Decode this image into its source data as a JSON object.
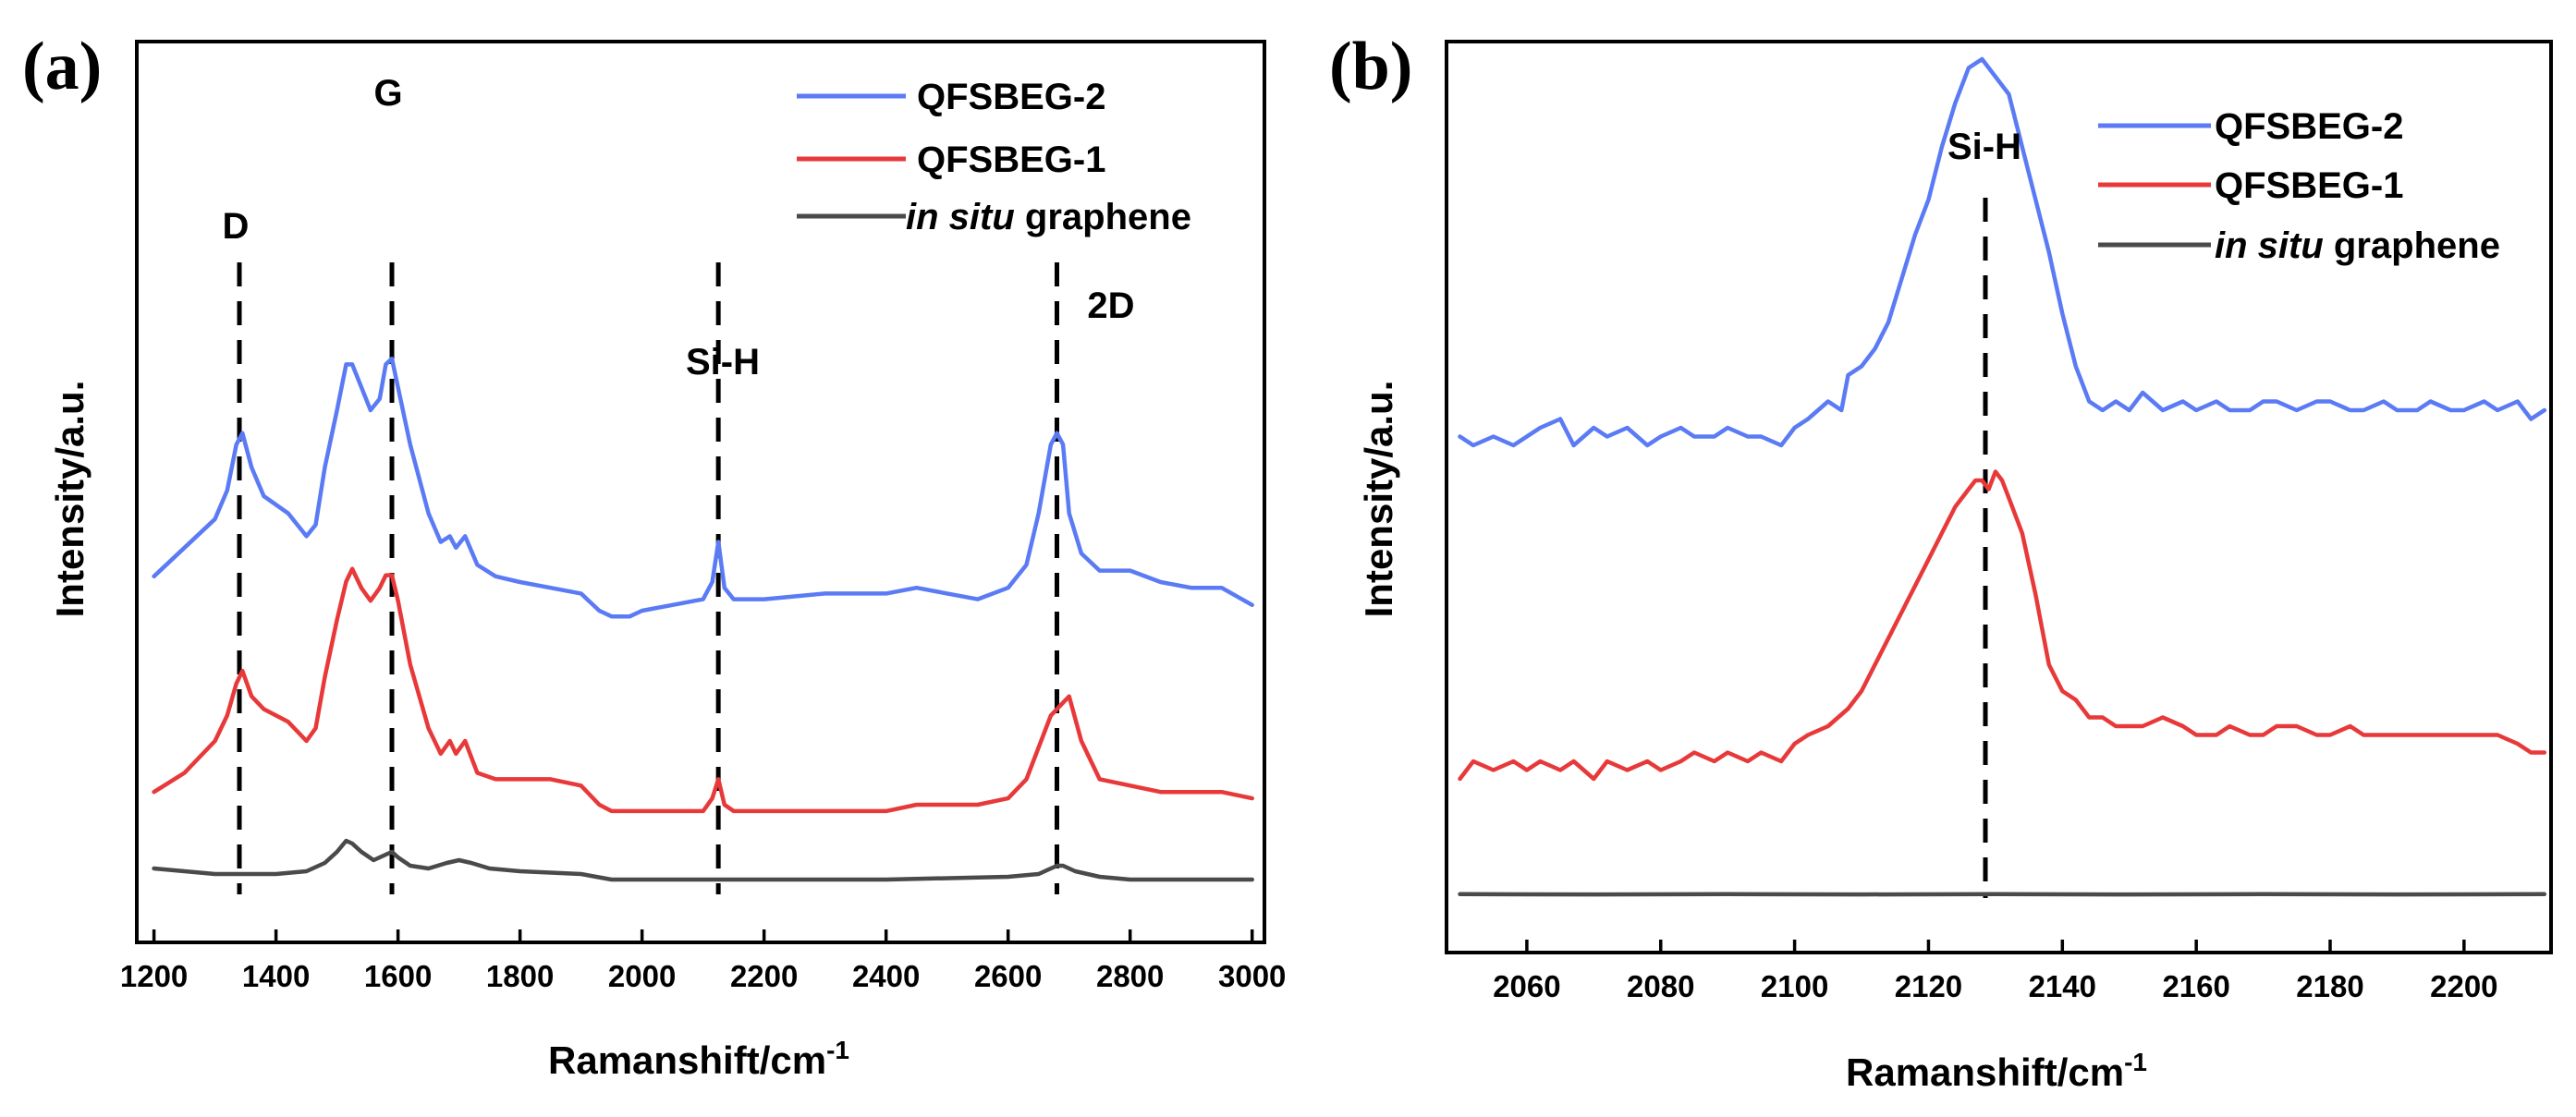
{
  "colors": {
    "qfsbeg2": "#5B7BF5",
    "qfsbeg1": "#E8393A",
    "graphene": "#4A4A4A"
  },
  "chart_data": [
    {
      "type": "line",
      "panel_label": "(a)",
      "xlabel": "Ramanshift/cm",
      "xlabel_sup": "-1",
      "ylabel": "Intensity/a.u.",
      "xlim": [
        1190,
        3005
      ],
      "ylim": [
        0,
        100
      ],
      "x_ticks": [
        "1200",
        "1400",
        "1600",
        "1800",
        "2000",
        "2200",
        "2400",
        "2600",
        "2800",
        "3000"
      ],
      "y_ticks": [],
      "legend": [
        {
          "name": "QFSBEG-2",
          "italic_prefix": ""
        },
        {
          "name": "QFSBEG-1",
          "italic_prefix": ""
        },
        {
          "name": " graphene",
          "italic_prefix": "in situ"
        }
      ],
      "annotations": [
        {
          "label": "D",
          "x": 1340
        },
        {
          "label": "G",
          "x": 1590
        },
        {
          "label": "Si-H",
          "x": 2125
        },
        {
          "label": "2D",
          "x": 2680
        }
      ],
      "series": [
        {
          "name": "QFSBEG-2",
          "x": [
            1200,
            1250,
            1300,
            1320,
            1335,
            1345,
            1360,
            1380,
            1420,
            1450,
            1465,
            1480,
            1500,
            1515,
            1525,
            1540,
            1555,
            1570,
            1580,
            1590,
            1600,
            1620,
            1650,
            1670,
            1685,
            1695,
            1710,
            1730,
            1760,
            1800,
            1850,
            1900,
            1930,
            1950,
            1980,
            2000,
            2050,
            2100,
            2115,
            2125,
            2135,
            2150,
            2200,
            2300,
            2400,
            2450,
            2500,
            2550,
            2600,
            2630,
            2650,
            2670,
            2680,
            2690,
            2700,
            2720,
            2750,
            2800,
            2850,
            2900,
            2950,
            3000
          ],
          "values": [
            51,
            56,
            61,
            66,
            74,
            76,
            70,
            65,
            62,
            58,
            60,
            70,
            80,
            88,
            88,
            84,
            80,
            82,
            88,
            89,
            84,
            74,
            62,
            57,
            58,
            56,
            58,
            53,
            51,
            50,
            49,
            48,
            45,
            44,
            44,
            45,
            46,
            47,
            50,
            57,
            49,
            47,
            47,
            48,
            48,
            49,
            48,
            47,
            49,
            53,
            62,
            74,
            76,
            74,
            62,
            55,
            52,
            52,
            50,
            49,
            49,
            46
          ]
        },
        {
          "name": "QFSBEG-1",
          "x": [
            1200,
            1250,
            1300,
            1320,
            1335,
            1345,
            1360,
            1380,
            1420,
            1450,
            1465,
            1480,
            1500,
            1515,
            1525,
            1540,
            1555,
            1570,
            1580,
            1590,
            1600,
            1620,
            1650,
            1670,
            1685,
            1695,
            1710,
            1730,
            1760,
            1800,
            1850,
            1900,
            1930,
            1950,
            1980,
            2000,
            2050,
            2100,
            2115,
            2125,
            2135,
            2150,
            2200,
            2300,
            2400,
            2450,
            2500,
            2550,
            2600,
            2630,
            2650,
            2670,
            2680,
            2690,
            2700,
            2720,
            2750,
            2800,
            2850,
            2900,
            2950,
            3000
          ],
          "values": [
            12,
            15,
            20,
            24,
            29,
            31,
            27,
            25,
            23,
            20,
            22,
            30,
            39,
            45,
            47,
            44,
            42,
            44,
            46,
            46,
            42,
            32,
            22,
            18,
            20,
            18,
            20,
            15,
            14,
            14,
            14,
            13,
            10,
            9,
            9,
            9,
            9,
            9,
            11,
            14,
            10,
            9,
            9,
            9,
            9,
            10,
            10,
            10,
            11,
            14,
            19,
            24,
            25,
            26,
            27,
            20,
            14,
            13,
            12,
            12,
            12,
            11
          ]
        },
        {
          "name": "in situ graphene",
          "x": [
            1200,
            1300,
            1400,
            1450,
            1480,
            1500,
            1515,
            1525,
            1540,
            1560,
            1580,
            1590,
            1600,
            1620,
            1650,
            1680,
            1700,
            1720,
            1750,
            1800,
            1900,
            1950,
            2000,
            2100,
            2200,
            2400,
            2600,
            2650,
            2670,
            2680,
            2690,
            2710,
            2750,
            2800,
            2900,
            3000
          ],
          "values": [
            2,
            1,
            1,
            1.5,
            3,
            5,
            7,
            6.5,
            5,
            3.5,
            4.5,
            5,
            4,
            2.5,
            2,
            3,
            3.5,
            3,
            2,
            1.5,
            1,
            0,
            0,
            0,
            0,
            0,
            0.5,
            1,
            2,
            2.5,
            2.5,
            1.5,
            0.5,
            0,
            0,
            0
          ]
        }
      ]
    },
    {
      "type": "line",
      "panel_label": "(b)",
      "xlabel": "Ramanshift/cm",
      "xlabel_sup": "-1",
      "ylabel": "Intensity/a.u.",
      "xlim": [
        2048,
        2213
      ],
      "ylim": [
        0,
        100
      ],
      "x_ticks": [
        "2060",
        "2080",
        "2100",
        "2120",
        "2140",
        "2160",
        "2180",
        "2200"
      ],
      "y_ticks": [],
      "legend": [
        {
          "name": "QFSBEG-2",
          "italic_prefix": ""
        },
        {
          "name": "QFSBEG-1",
          "italic_prefix": ""
        },
        {
          "name": " graphene",
          "italic_prefix": "in situ"
        }
      ],
      "annotations": [
        {
          "label": "Si-H",
          "x": 2128.5
        }
      ],
      "series": [
        {
          "name": "QFSBEG-2",
          "x": [
            2050,
            2052,
            2055,
            2058,
            2060,
            2062,
            2065,
            2067,
            2070,
            2072,
            2075,
            2078,
            2080,
            2083,
            2085,
            2088,
            2090,
            2093,
            2095,
            2098,
            2100,
            2102,
            2105,
            2107,
            2108,
            2110,
            2112,
            2114,
            2116,
            2118,
            2120,
            2122,
            2124,
            2126,
            2128,
            2130,
            2132,
            2134,
            2136,
            2138,
            2140,
            2142,
            2144,
            2146,
            2148,
            2150,
            2152,
            2155,
            2158,
            2160,
            2163,
            2165,
            2168,
            2170,
            2172,
            2175,
            2178,
            2180,
            2183,
            2185,
            2188,
            2190,
            2193,
            2195,
            2198,
            2200,
            2203,
            2205,
            2208,
            2210,
            2212
          ],
          "values": [
            47,
            46,
            47,
            46,
            47,
            48,
            49,
            46,
            48,
            47,
            48,
            46,
            47,
            48,
            47,
            47,
            48,
            47,
            47,
            46,
            48,
            49,
            51,
            50,
            54,
            55,
            57,
            60,
            65,
            70,
            74,
            80,
            85,
            89,
            90,
            88,
            86,
            80,
            74,
            68,
            61,
            55,
            51,
            50,
            51,
            50,
            52,
            50,
            51,
            50,
            51,
            50,
            50,
            51,
            51,
            50,
            51,
            51,
            50,
            50,
            51,
            50,
            50,
            51,
            50,
            50,
            51,
            50,
            51,
            49,
            50
          ]
        },
        {
          "name": "QFSBEG-1",
          "x": [
            2050,
            2052,
            2055,
            2058,
            2060,
            2062,
            2065,
            2067,
            2070,
            2072,
            2075,
            2078,
            2080,
            2083,
            2085,
            2088,
            2090,
            2093,
            2095,
            2098,
            2100,
            2102,
            2105,
            2108,
            2110,
            2112,
            2114,
            2116,
            2118,
            2120,
            2122,
            2124,
            2126,
            2127,
            2128,
            2129,
            2130,
            2131,
            2132,
            2134,
            2136,
            2138,
            2140,
            2142,
            2144,
            2146,
            2148,
            2150,
            2152,
            2155,
            2158,
            2160,
            2163,
            2165,
            2168,
            2170,
            2172,
            2175,
            2178,
            2180,
            2183,
            2185,
            2188,
            2190,
            2193,
            2195,
            2198,
            2200,
            2203,
            2205,
            2208,
            2210,
            2212
          ],
          "values": [
            8,
            10,
            9,
            10,
            9,
            10,
            9,
            10,
            8,
            10,
            9,
            10,
            9,
            10,
            11,
            10,
            11,
            10,
            11,
            10,
            12,
            13,
            14,
            16,
            18,
            21,
            24,
            27,
            30,
            33,
            36,
            39,
            41,
            42,
            42,
            41,
            43,
            42,
            40,
            36,
            29,
            21,
            18,
            17,
            15,
            15,
            14,
            14,
            14,
            15,
            14,
            13,
            13,
            14,
            13,
            13,
            14,
            14,
            13,
            13,
            14,
            13,
            13,
            13,
            13,
            13,
            13,
            13,
            13,
            13,
            12,
            11,
            11
          ]
        },
        {
          "name": "in situ graphene",
          "x": [
            2050,
            2070,
            2090,
            2110,
            2130,
            2150,
            2170,
            2190,
            2212
          ],
          "values": [
            0.4,
            0.3,
            0.4,
            0.3,
            0.4,
            0.3,
            0.4,
            0.3,
            0.4
          ]
        }
      ]
    }
  ]
}
